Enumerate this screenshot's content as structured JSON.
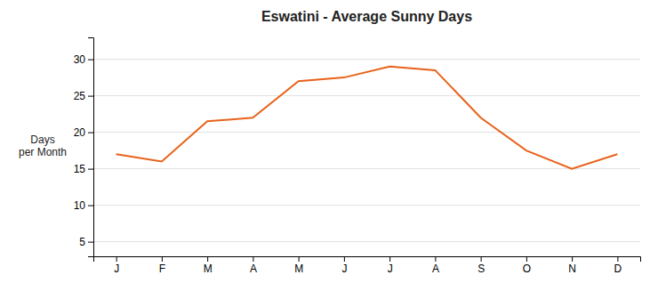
{
  "chart_data": {
    "type": "line",
    "title": "Eswatini - Average Sunny Days",
    "categories": [
      "J",
      "F",
      "M",
      "A",
      "M",
      "J",
      "J",
      "A",
      "S",
      "O",
      "N",
      "D"
    ],
    "values": [
      17,
      16,
      21.5,
      22,
      27,
      27.5,
      29,
      28.5,
      22,
      17.5,
      15,
      17
    ],
    "color": "#E8621A",
    "ylabel": "Days\nper Month",
    "ylim": [
      3,
      33
    ],
    "yticks": [
      5,
      10,
      15,
      20,
      25,
      30
    ],
    "grid": true
  }
}
